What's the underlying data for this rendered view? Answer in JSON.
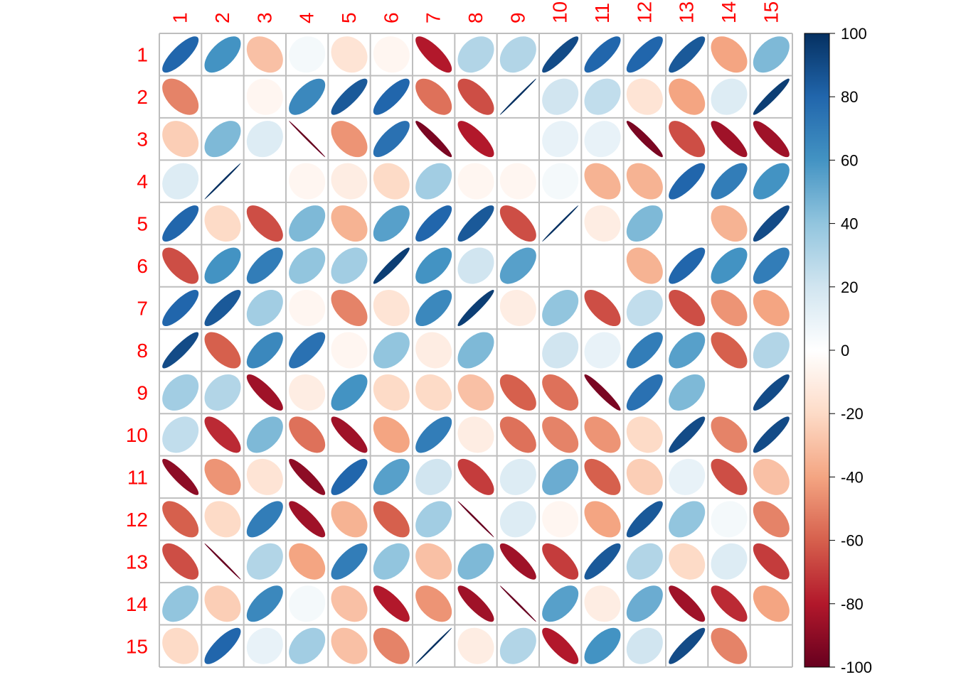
{
  "chart_data": {
    "type": "heatmap",
    "title": "",
    "xlabel": "",
    "ylabel": "",
    "row_labels": [
      "1",
      "2",
      "3",
      "4",
      "5",
      "6",
      "7",
      "8",
      "9",
      "10",
      "11",
      "12",
      "13",
      "14",
      "15"
    ],
    "col_labels": [
      "1",
      "2",
      "3",
      "4",
      "5",
      "6",
      "7",
      "8",
      "9",
      "10",
      "11",
      "12",
      "13",
      "14",
      "15"
    ],
    "values": [
      [
        80,
        60,
        -30,
        5,
        -15,
        -5,
        -80,
        30,
        30,
        90,
        80,
        80,
        85,
        -40,
        45
      ],
      [
        -50,
        0,
        -5,
        65,
        85,
        80,
        -55,
        -65,
        100,
        20,
        25,
        -15,
        -40,
        15,
        95
      ],
      [
        -25,
        45,
        15,
        -100,
        -45,
        75,
        -95,
        -80,
        0,
        10,
        10,
        -95,
        -65,
        -85,
        -85
      ],
      [
        15,
        100,
        0,
        -5,
        -10,
        -20,
        35,
        -5,
        -5,
        5,
        -35,
        -35,
        80,
        70,
        60
      ],
      [
        80,
        -20,
        -65,
        45,
        -35,
        55,
        80,
        85,
        -65,
        100,
        -10,
        45,
        0,
        -35,
        90
      ],
      [
        -65,
        60,
        70,
        40,
        35,
        95,
        60,
        20,
        55,
        0,
        0,
        -35,
        80,
        60,
        70
      ],
      [
        80,
        85,
        35,
        -5,
        -50,
        -15,
        65,
        95,
        -10,
        40,
        -65,
        25,
        -65,
        -45,
        -40
      ],
      [
        90,
        -60,
        65,
        75,
        -5,
        40,
        -10,
        45,
        0,
        20,
        10,
        70,
        55,
        -60,
        30
      ],
      [
        35,
        30,
        -85,
        -10,
        60,
        -20,
        -20,
        -30,
        -60,
        -55,
        -95,
        75,
        45,
        0,
        90
      ],
      [
        25,
        -75,
        45,
        -55,
        -85,
        -40,
        70,
        -10,
        -55,
        -50,
        -45,
        -20,
        90,
        -50,
        90
      ],
      [
        -90,
        -45,
        -15,
        -90,
        80,
        55,
        20,
        -70,
        15,
        50,
        -60,
        -25,
        10,
        -65,
        -30
      ],
      [
        -60,
        -20,
        70,
        -85,
        -35,
        -60,
        35,
        -100,
        15,
        -5,
        -40,
        85,
        40,
        5,
        -50
      ],
      [
        -65,
        -100,
        30,
        -40,
        70,
        40,
        -30,
        45,
        -85,
        -70,
        85,
        30,
        -20,
        15,
        -70
      ],
      [
        40,
        -25,
        65,
        5,
        -30,
        -80,
        -45,
        -85,
        -100,
        55,
        -10,
        50,
        -85,
        -75,
        -40
      ],
      [
        -20,
        80,
        10,
        35,
        -30,
        -50,
        100,
        -10,
        30,
        -80,
        60,
        20,
        90,
        -50,
        0
      ]
    ],
    "colorbar": {
      "range": [
        -100,
        100
      ],
      "ticks": [
        100,
        80,
        60,
        40,
        20,
        0,
        -20,
        -40,
        -60,
        -80,
        -100
      ]
    },
    "label_color": "#ff0000",
    "grid_color": "#bebebe"
  }
}
